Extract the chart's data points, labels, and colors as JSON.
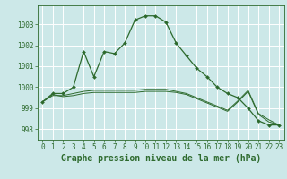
{
  "background_color": "#cce8e8",
  "grid_color": "#ffffff",
  "line_color": "#2d6a2d",
  "marker_color": "#2d6a2d",
  "xlabel": "Graphe pression niveau de la mer (hPa)",
  "xlabel_fontsize": 7,
  "tick_fontsize": 5.5,
  "ytick_fontsize": 5.5,
  "ylim": [
    997.5,
    1003.9
  ],
  "xlim": [
    -0.5,
    23.5
  ],
  "yticks": [
    998,
    999,
    1000,
    1001,
    1002,
    1003
  ],
  "xticks": [
    0,
    1,
    2,
    3,
    4,
    5,
    6,
    7,
    8,
    9,
    10,
    11,
    12,
    13,
    14,
    15,
    16,
    17,
    18,
    19,
    20,
    21,
    22,
    23
  ],
  "series": [
    [
      999.3,
      999.7,
      999.7,
      1000.0,
      1001.7,
      1000.5,
      1001.7,
      1001.6,
      1002.1,
      1003.2,
      1003.4,
      1003.4,
      1003.1,
      1002.1,
      1001.5,
      1000.9,
      1000.5,
      1000.0,
      999.7,
      999.5,
      999.0,
      998.4,
      998.2,
      998.2
    ],
    [
      999.3,
      999.6,
      999.6,
      999.7,
      999.8,
      999.85,
      999.85,
      999.85,
      999.85,
      999.85,
      999.9,
      999.9,
      999.9,
      999.8,
      999.7,
      999.5,
      999.3,
      999.1,
      998.9,
      999.35,
      999.85,
      998.75,
      998.45,
      998.2
    ],
    [
      999.3,
      999.65,
      999.55,
      999.6,
      999.7,
      999.75,
      999.75,
      999.75,
      999.75,
      999.75,
      999.8,
      999.8,
      999.8,
      999.75,
      999.65,
      999.45,
      999.25,
      999.05,
      998.85,
      999.3,
      999.8,
      998.7,
      998.35,
      998.2
    ]
  ]
}
